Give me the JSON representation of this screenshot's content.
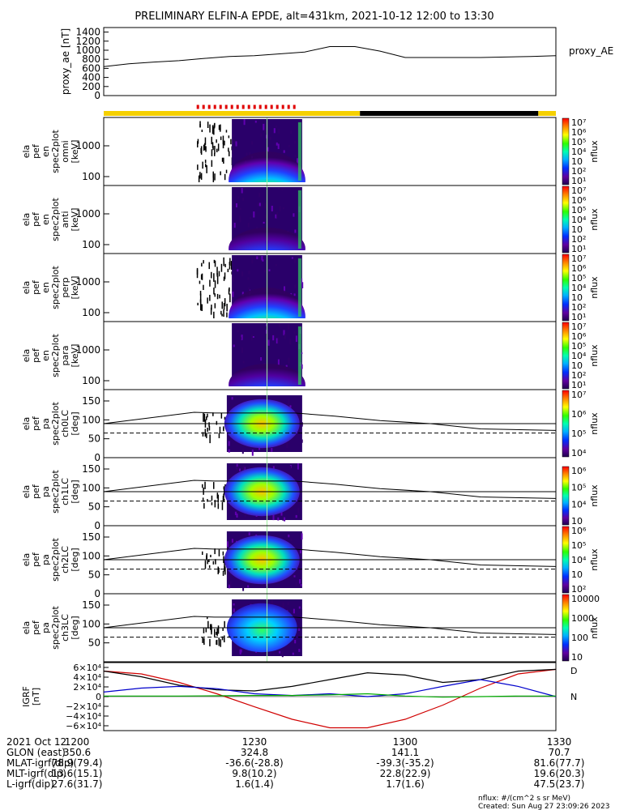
{
  "title": "PRELIMINARY ELFIN-A EPDE, alt=431km, 2021-10-12 12:00 to 13:30",
  "chart_data": {
    "type": "stacked-timeseries",
    "time_range": [
      "12:00",
      "13:30"
    ],
    "ae_panel": {
      "ylabel": "proxy_ae [nT]",
      "legend": "proxy_AE",
      "yticks": [
        "1400",
        "1200",
        "1000",
        "800",
        "600",
        "400",
        "200",
        "0"
      ],
      "ylim": [
        0,
        1500
      ],
      "times": [
        0,
        5,
        10,
        15,
        20,
        25,
        30,
        35,
        40,
        45,
        50,
        55,
        60,
        65,
        70,
        75,
        80,
        85,
        90
      ],
      "values": [
        640,
        700,
        740,
        770,
        820,
        860,
        880,
        920,
        960,
        1080,
        1080,
        980,
        840,
        840,
        840,
        840,
        850,
        860,
        880
      ]
    },
    "bar": {
      "segments": [
        {
          "from": 0,
          "to": 51,
          "color": "#f5d000"
        },
        {
          "from": 51,
          "to": 86.5,
          "color": "#000000"
        },
        {
          "from": 86.5,
          "to": 90,
          "color": "#f5d000"
        }
      ],
      "dashed": {
        "from": 18.5,
        "to": 38.5,
        "color": "#e00000"
      }
    },
    "spec_panels": [
      {
        "ylabel": [
          "ela",
          "pef",
          "en",
          "spec2plot",
          "omni",
          "[keV]"
        ],
        "yticks": [
          "1000",
          "100"
        ],
        "cbar": [
          "10⁷",
          "10⁶",
          "10⁵",
          "10⁴",
          "10⁳",
          "10²",
          "10¹"
        ],
        "cbar_label": "nflux",
        "kind": "energy",
        "left_scatter": true
      },
      {
        "ylabel": [
          "ela",
          "pef",
          "en",
          "spec2plot",
          "anti",
          "[keV]"
        ],
        "yticks": [
          "1000",
          "100"
        ],
        "cbar": [
          "10⁷",
          "10⁶",
          "10⁵",
          "10⁴",
          "10⁳",
          "10²",
          "10¹"
        ],
        "cbar_label": "nflux",
        "kind": "energy_anti",
        "left_scatter": false
      },
      {
        "ylabel": [
          "ela",
          "pef",
          "en",
          "spec2plot",
          "perp",
          "[keV]"
        ],
        "yticks": [
          "1000",
          "100"
        ],
        "cbar": [
          "10⁷",
          "10⁶",
          "10⁵",
          "10⁴",
          "10⁳",
          "10²",
          "10¹"
        ],
        "cbar_label": "nflux",
        "kind": "energy",
        "left_scatter": true
      },
      {
        "ylabel": [
          "ela",
          "pef",
          "en",
          "spec2plot",
          "para",
          "[keV]"
        ],
        "yticks": [
          "1000",
          "100"
        ],
        "cbar": [
          "10⁷",
          "10⁶",
          "10⁵",
          "10⁴",
          "10⁳",
          "10²",
          "10¹"
        ],
        "cbar_label": "nflux",
        "kind": "energy_anti",
        "left_scatter": false
      }
    ],
    "pa_panels": [
      {
        "ylabel": [
          "ela",
          "pef",
          "pa",
          "spec2plot",
          "ch0LC",
          "[deg]"
        ],
        "yticks": [
          "150",
          "100",
          "50",
          "0"
        ],
        "cbar": [
          "10⁷",
          "10⁶",
          "10⁵",
          "10⁴"
        ],
        "cbar_label": "nflux"
      },
      {
        "ylabel": [
          "ela",
          "pef",
          "pa",
          "spec2plot",
          "ch1LC",
          "[deg]"
        ],
        "yticks": [
          "150",
          "100",
          "50",
          "0"
        ],
        "cbar": [
          "10⁶",
          "10⁵",
          "10⁴",
          "10⁳"
        ],
        "cbar_label": "nflux"
      },
      {
        "ylabel": [
          "ela",
          "pef",
          "pa",
          "spec2plot",
          "ch2LC",
          "[deg]"
        ],
        "yticks": [
          "150",
          "100",
          "50",
          "0"
        ],
        "cbar": [
          "10⁶",
          "10⁵",
          "10⁴",
          "10⁳",
          "10²"
        ],
        "cbar_label": "nflux"
      },
      {
        "ylabel": [
          "ela",
          "pef",
          "pa",
          "spec2plot",
          "ch3LC",
          "[deg]"
        ],
        "yticks": [
          "150",
          "100",
          "50"
        ],
        "cbar": [
          "10000",
          "1000",
          "100",
          "10"
        ],
        "cbar_label": "nflux"
      }
    ],
    "igrf_panel": {
      "ylabel": [
        "IGRF",
        "[nT]"
      ],
      "yticks": [
        "6×10⁴",
        "4×10⁴",
        "2×10⁴",
        "0",
        "−2×10⁴",
        "−4×10⁴",
        "−6×10⁴"
      ],
      "ylim": [
        -60000,
        60000
      ],
      "times": [
        0,
        7.5,
        15,
        22.5,
        30,
        37.5,
        45,
        52.5,
        60,
        67.5,
        75,
        82.5,
        90
      ],
      "series": [
        {
          "name": "D",
          "color": "#d00000",
          "values": [
            45000,
            40000,
            25000,
            5000,
            -18000,
            -40000,
            -55000,
            -55000,
            -40000,
            -15000,
            15000,
            40000,
            48000
          ]
        },
        {
          "name": "",
          "color": "#000000",
          "values": [
            45000,
            35000,
            20000,
            12000,
            10000,
            18000,
            30000,
            42000,
            38000,
            25000,
            30000,
            45000,
            48000
          ]
        },
        {
          "name": "",
          "color": "#0000cc",
          "values": [
            8000,
            15000,
            18000,
            14000,
            5000,
            2000,
            5000,
            0,
            5000,
            18000,
            30000,
            18000,
            0
          ]
        },
        {
          "name": "N",
          "color": "#00aa00",
          "values": [
            1000,
            1000,
            1000,
            1500,
            2000,
            2000,
            3000,
            5000,
            1000,
            -1000,
            0,
            1000,
            1000
          ]
        }
      ]
    },
    "footer": {
      "rows": [
        {
          "label": "2021 Oct 12",
          "values": [
            "1200",
            "1230",
            "1300",
            "1330"
          ]
        },
        {
          "label": "GLON (east)",
          "values": [
            "350.6",
            "324.8",
            "141.1",
            "70.7"
          ]
        },
        {
          "label": "MLAT-igrf(dip)",
          "values": [
            "78.9(79.4)",
            "-36.6(-28.8)",
            "-39.3(-35.2)",
            "81.6(77.7)"
          ]
        },
        {
          "label": "MLT-igrf(dip)",
          "values": [
            "13.6(15.1)",
            "9.8(10.2)",
            "22.8(22.9)",
            "19.6(20.3)"
          ]
        },
        {
          "label": "L-igrf(dip)",
          "values": [
            "27.6(31.7)",
            "1.6(1.4)",
            "1.7(1.6)",
            "47.5(23.7)"
          ]
        }
      ],
      "units_note": "nflux: #/(cm^2 s sr MeV)",
      "created": "Created: Sun Aug 27 23:09:26 2023"
    }
  }
}
